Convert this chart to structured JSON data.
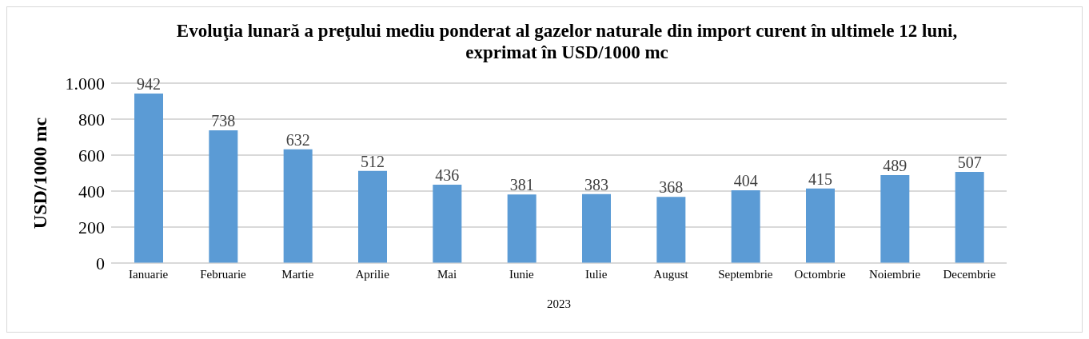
{
  "chart_data": {
    "type": "bar",
    "title": "Evoluţia lunară a preţului mediu ponderat al gazelor naturale din import curent în ultimele 12 luni, exprimat în USD/1000 mc",
    "xlabel": "2023",
    "ylabel": "USD/1000 mc",
    "categories": [
      "Ianuarie",
      "Februarie",
      "Martie",
      "Aprilie",
      "Mai",
      "Iunie",
      "Iulie",
      "August",
      "Septembrie",
      "Octombrie",
      "Noiembrie",
      "Decembrie"
    ],
    "values": [
      942,
      738,
      632,
      512,
      436,
      381,
      383,
      368,
      404,
      415,
      489,
      507
    ],
    "color": "#5b9bd5",
    "ylim": [
      0,
      1000
    ],
    "yticks": [
      0,
      200,
      400,
      600,
      800,
      {
        "value": 1000,
        "label": "1.000"
      }
    ],
    "grid": "y",
    "data_labels": true
  }
}
